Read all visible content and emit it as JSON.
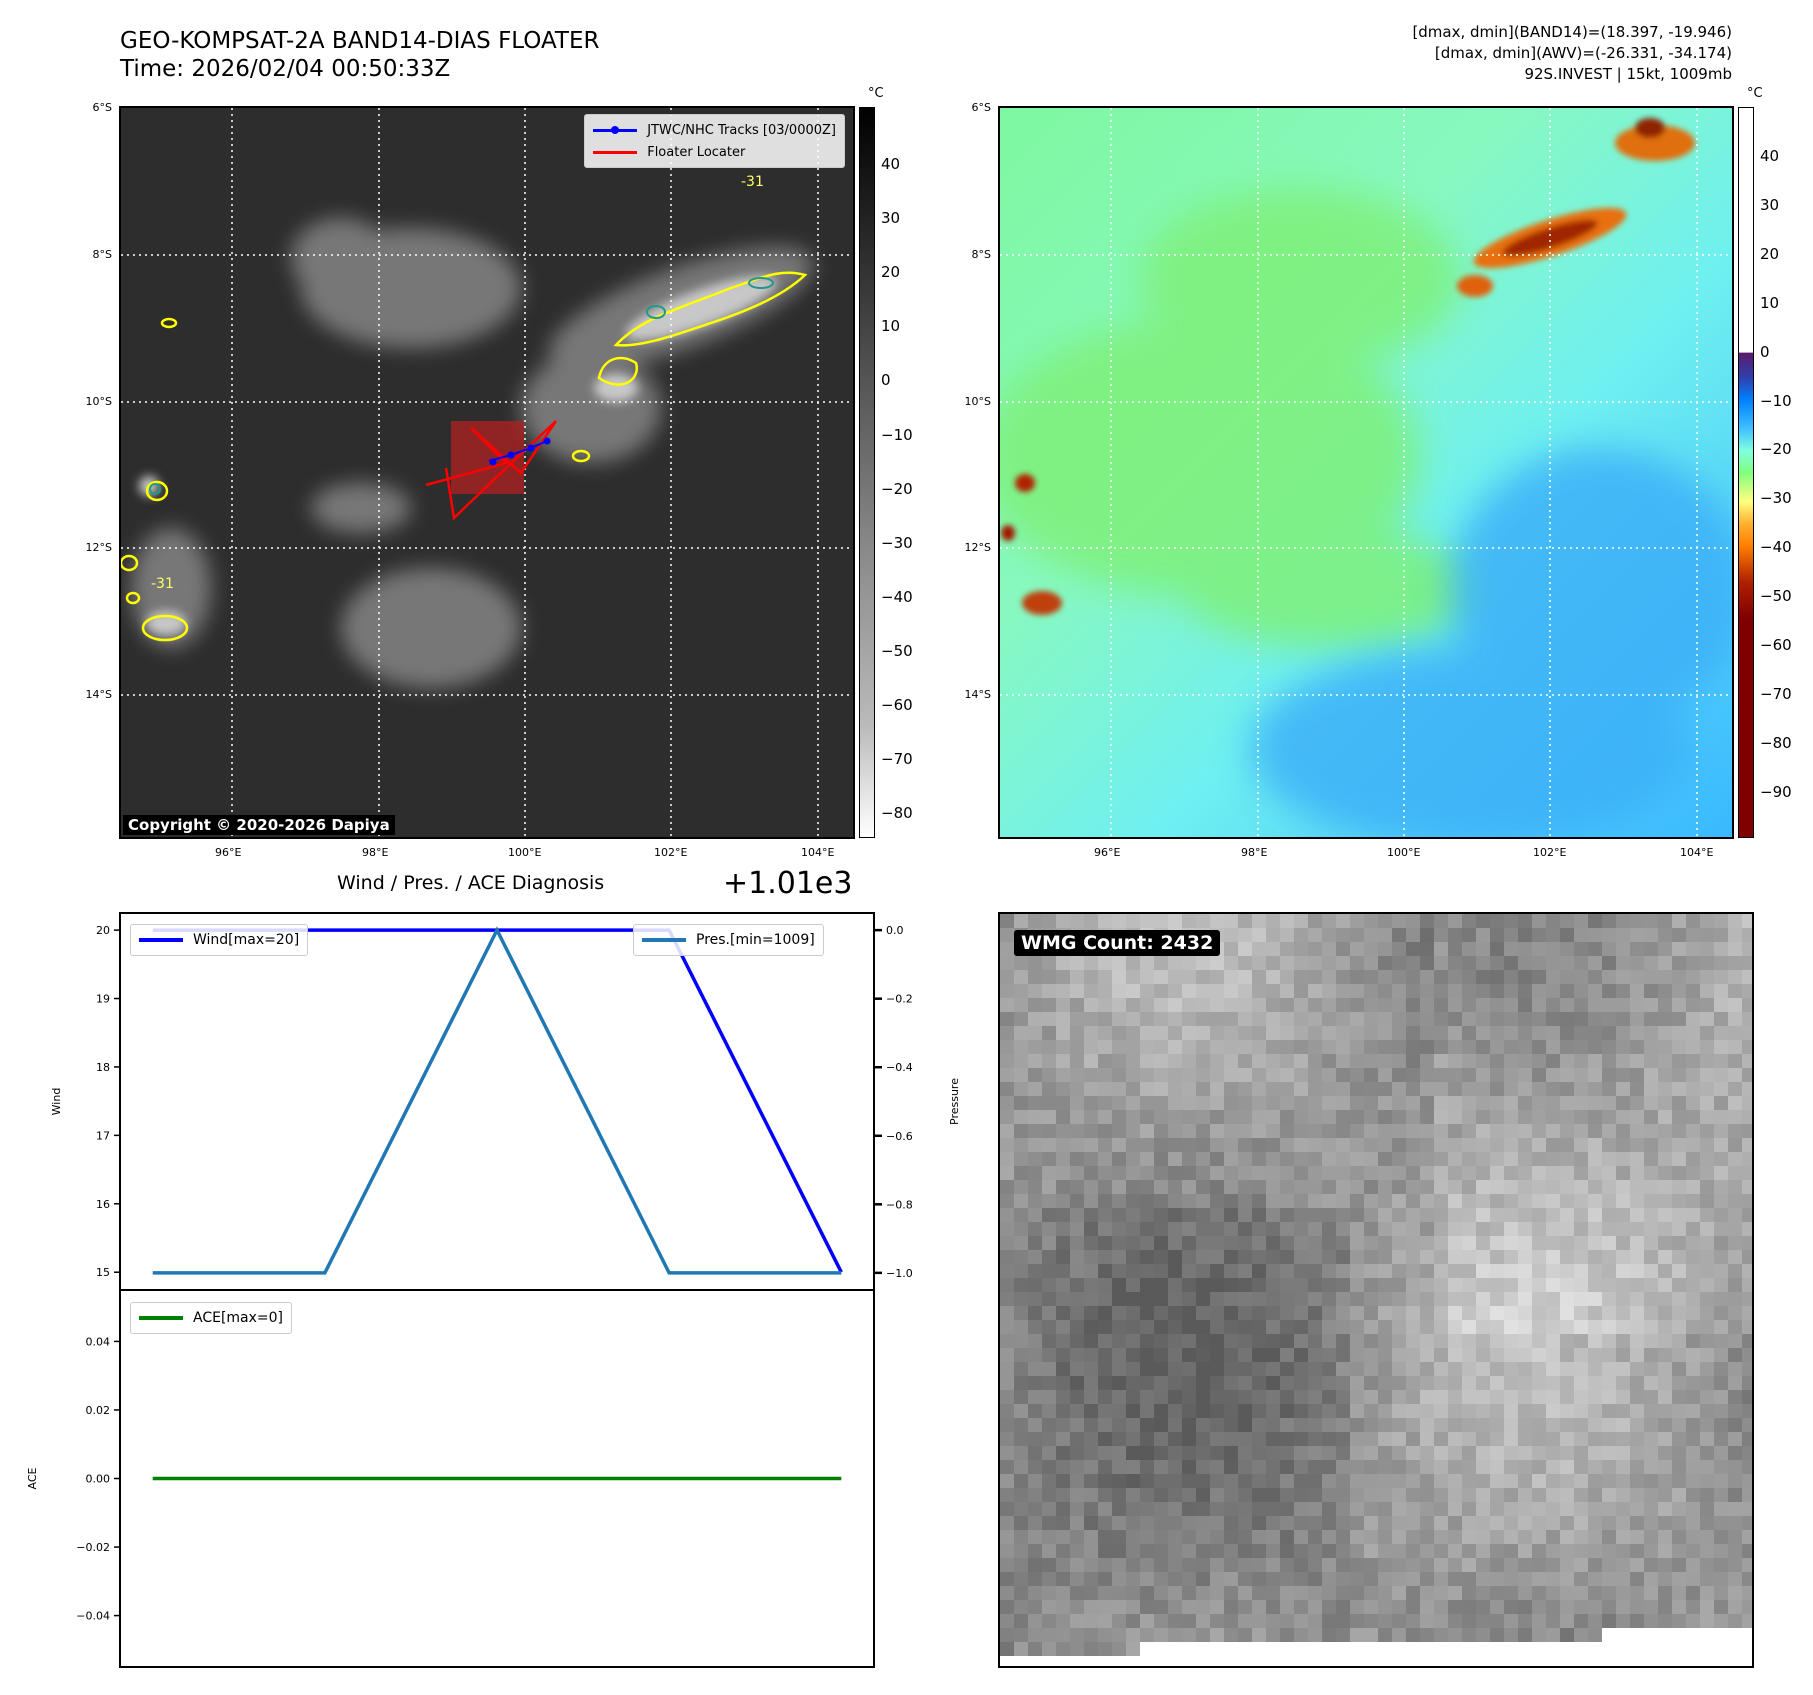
{
  "header": {
    "title": "GEO-KOMPSAT-2A BAND14-DIAS FLOATER",
    "time": "Time: 2026/02/04 00:50:33Z",
    "info_band14": "[dmax, dmin](BAND14)=(18.397, -19.946)",
    "info_awv": "[dmax, dmin](AWV)=(-26.331, -34.174)",
    "info_storm": "92S.INVEST | 15kt, 1009mb"
  },
  "maps": {
    "lon_ticks": [
      "96°E",
      "98°E",
      "100°E",
      "102°E",
      "104°E"
    ],
    "lat_ticks": [
      "6°S",
      "8°S",
      "10°S",
      "12°S",
      "14°S"
    ],
    "colorbar_unit": "°C",
    "left_colorbar_ticks": [
      "40",
      "30",
      "20",
      "10",
      "0",
      "−10",
      "−20",
      "−30",
      "−40",
      "−50",
      "−60",
      "−70",
      "−80"
    ],
    "right_colorbar_ticks": [
      "40",
      "30",
      "20",
      "10",
      "0",
      "−10",
      "−20",
      "−30",
      "−40",
      "−50",
      "−60",
      "−70",
      "−80",
      "−90"
    ],
    "legend_tracks": "JTWC/NHC Tracks [03/0000Z]",
    "legend_floater": "Floater Locater",
    "contour_label_1": "-31",
    "contour_label_2": "-31",
    "copyright": "Copyright © 2020-2026 Dapiya",
    "colors": {
      "track": "#0000ff",
      "floater": "#ff0000",
      "contour_yellow": "#ffff00",
      "contour_green": "#66cc44",
      "contour_teal": "#229988"
    }
  },
  "wmg": {
    "label": "WMG Count: 2432"
  },
  "chart_data": [
    {
      "type": "line",
      "title": "Wind / Pres. / ACE Diagnosis",
      "offset_label": "+1.01e3",
      "x": [
        0,
        1,
        2,
        3,
        4
      ],
      "ylabel": "Wind",
      "ylabel_right": "Pressure",
      "ylim": [
        14.74,
        20.25
      ],
      "ylim_right": [
        -1.05,
        0.05
      ],
      "yticks": [
        "15",
        "16",
        "17",
        "18",
        "19",
        "20"
      ],
      "yticks_right": [
        "−1.0",
        "−0.8",
        "−0.6",
        "−0.4",
        "−0.2",
        "0.0"
      ],
      "series": [
        {
          "name": "Wind[max=20]",
          "values": [
            20,
            20,
            20,
            20,
            15
          ],
          "color": "#0000ff",
          "axis": "left"
        },
        {
          "name": "Pres.[min=1009]",
          "values": [
            -1,
            -1,
            0,
            -1,
            -1
          ],
          "color": "#1f77b4",
          "axis": "right"
        }
      ]
    },
    {
      "type": "line",
      "x": [
        0,
        1,
        2,
        3,
        4
      ],
      "ylabel": "ACE",
      "ylim": [
        -0.055,
        0.055
      ],
      "yticks": [
        "0.04",
        "0.02",
        "0.00",
        "−0.02",
        "−0.04"
      ],
      "series": [
        {
          "name": "ACE[max=0]",
          "values": [
            0,
            0,
            0,
            0,
            0
          ],
          "color": "#008000"
        }
      ]
    }
  ]
}
